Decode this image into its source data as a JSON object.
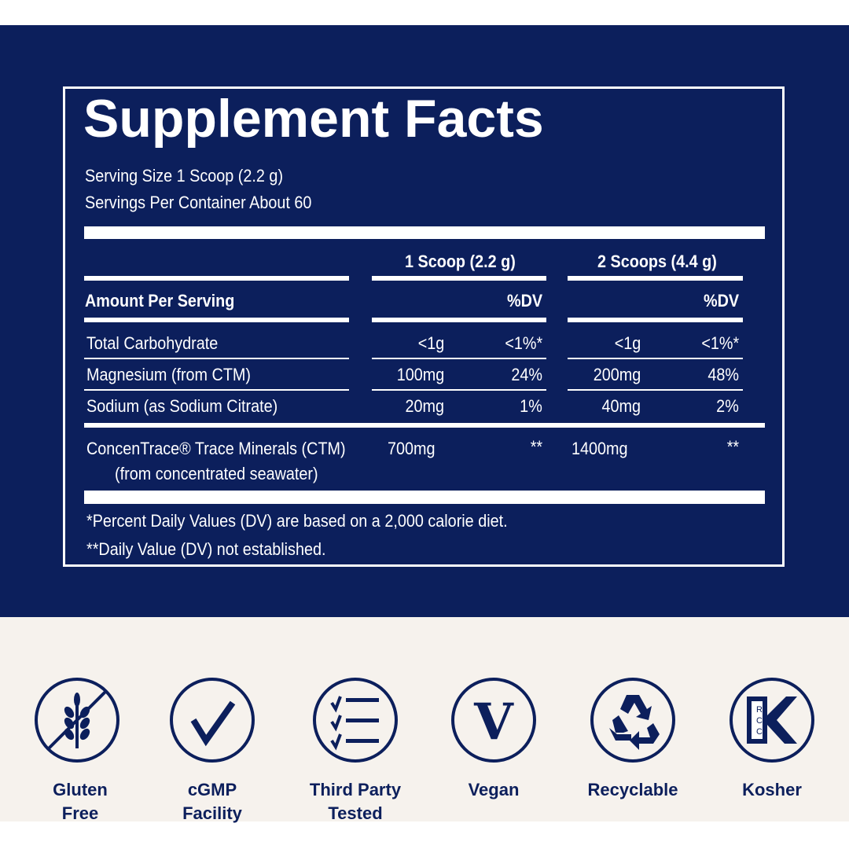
{
  "title": "Supplement Facts",
  "serving_size": "Serving Size 1 Scoop (2.2 g)",
  "servings_per_container": "Servings Per Container About 60",
  "col_headers": [
    "1 Scoop (2.2 g)",
    "2 Scoops (4.4 g)"
  ],
  "amount_per_serving": "Amount Per Serving",
  "dv_label": "%DV",
  "rows": [
    {
      "name": "Total Carbohydrate",
      "a1": "<1g",
      "d1": "<1%*",
      "a2": "<1g",
      "d2": "<1%*"
    },
    {
      "name": "Magnesium (from CTM)",
      "a1": "100mg",
      "d1": "24%",
      "a2": "200mg",
      "d2": "48%"
    },
    {
      "name": "Sodium (as Sodium Citrate)",
      "a1": "20mg",
      "d1": "1%",
      "a2": "40mg",
      "d2": "2%"
    }
  ],
  "ctm": {
    "name": "ConcenTrace® Trace Minerals (CTM)",
    "sub": "(from concentrated seawater)",
    "a1": "700mg",
    "d1": "**",
    "a2": "1400mg",
    "d2": "**"
  },
  "footnotes": [
    "*Percent Daily Values (DV) are based on a 2,000 calorie diet.",
    "**Daily Value (DV) not established."
  ],
  "badges": [
    {
      "icon": "gluten-free-icon",
      "line1": "Gluten",
      "line2": "Free"
    },
    {
      "icon": "checkmark-icon",
      "line1": "cGMP",
      "line2": "Facility"
    },
    {
      "icon": "checklist-icon",
      "line1": "Third Party",
      "line2": "Tested"
    },
    {
      "icon": "vegan-v-icon",
      "line1": "Vegan",
      "line2": ""
    },
    {
      "icon": "recycle-icon",
      "line1": "Recyclable",
      "line2": ""
    },
    {
      "icon": "kosher-icon",
      "line1": "Kosher",
      "line2": ""
    }
  ],
  "kosher_letters": [
    "R",
    "C",
    "C",
    "K"
  ],
  "colors": {
    "navy": "#0c1f5c",
    "beige": "#f6f2ed",
    "white": "#ffffff"
  }
}
